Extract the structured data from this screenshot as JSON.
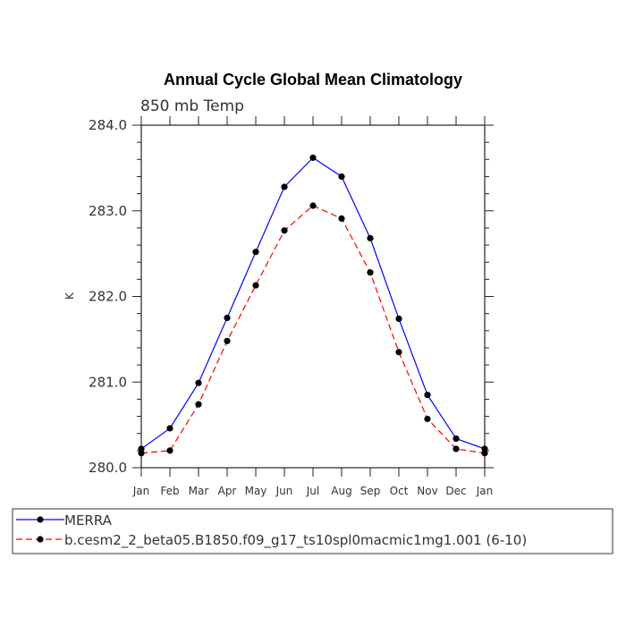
{
  "chart_data": {
    "type": "line",
    "title": "Annual Cycle Global Mean Climatology",
    "subtitle": "850 mb Temp",
    "xlabel": "",
    "ylabel": "K",
    "categories": [
      "Jan",
      "Feb",
      "Mar",
      "Apr",
      "May",
      "Jun",
      "Jul",
      "Aug",
      "Sep",
      "Oct",
      "Nov",
      "Dec",
      "Jan"
    ],
    "ylim": [
      280.0,
      284.0
    ],
    "yticks": [
      "280.0",
      "281.0",
      "282.0",
      "283.0",
      "284.0"
    ],
    "yticks_values": [
      280.0,
      281.0,
      282.0,
      283.0,
      284.0
    ],
    "legend_position": "bottom",
    "series": [
      {
        "name": "MERRA",
        "color": "#0000ff",
        "line_style": "solid",
        "marker": "filled-circle",
        "values": [
          280.22,
          280.46,
          280.99,
          281.75,
          282.52,
          283.28,
          283.62,
          283.4,
          282.68,
          281.74,
          280.85,
          280.34,
          280.22
        ]
      },
      {
        "name": "b.cesm2_2_beta05.B1850.f09_g17_ts10spl0macmic1mg1.001 (6-10)",
        "color": "#ff0000",
        "line_style": "dashed",
        "marker": "filled-circle",
        "values": [
          280.17,
          280.2,
          280.74,
          281.48,
          282.13,
          282.77,
          283.06,
          282.91,
          282.28,
          281.35,
          280.57,
          280.22,
          280.17
        ]
      }
    ]
  }
}
